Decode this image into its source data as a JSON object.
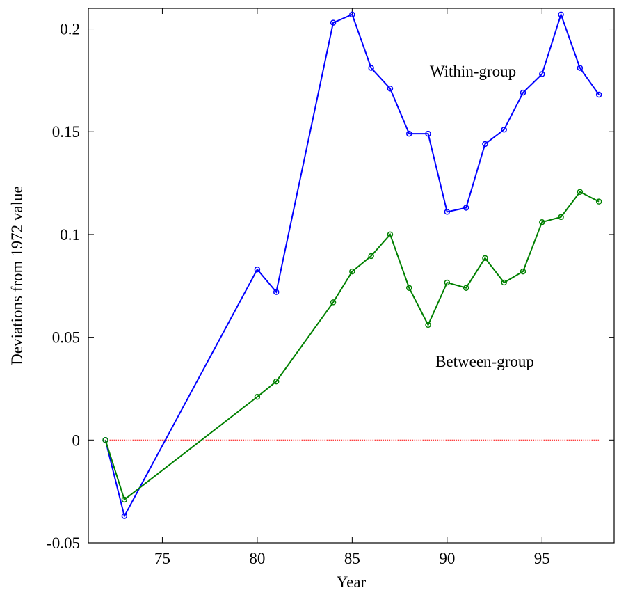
{
  "chart_data": {
    "type": "line",
    "x_label": "Year",
    "y_label": "Deviations from 1972 value",
    "x": [
      72,
      73,
      80,
      81,
      84,
      85,
      86,
      87,
      88,
      89,
      90,
      91,
      92,
      93,
      94,
      95,
      96,
      97,
      98
    ],
    "series": [
      {
        "name": "Within-group",
        "color": "#0000ff",
        "values": [
          0,
          -0.037,
          0.083,
          0.072,
          0.203,
          0.207,
          0.181,
          0.171,
          0.149,
          0.149,
          0.111,
          0.113,
          0.144,
          0.151,
          0.169,
          0.178,
          0.207,
          0.181,
          0.168
        ]
      },
      {
        "name": "Between-group",
        "color": "#008000",
        "values": [
          0,
          -0.029,
          0.021,
          0.0285,
          0.067,
          0.082,
          0.0895,
          0.1,
          0.074,
          0.056,
          0.0766,
          0.074,
          0.0885,
          0.0766,
          0.082,
          0.106,
          0.1085,
          0.1207,
          0.116
        ]
      }
    ],
    "reference_line": {
      "y": 0,
      "x": [
        72,
        98
      ],
      "color": "#ff0000"
    },
    "xlim": [
      71.1,
      98.8
    ],
    "ylim": [
      -0.05,
      0.21
    ],
    "xticks": [
      75,
      80,
      85,
      90,
      95
    ],
    "yticks": [
      -0.05,
      0,
      0.05,
      0.1,
      0.15,
      0.2
    ]
  }
}
